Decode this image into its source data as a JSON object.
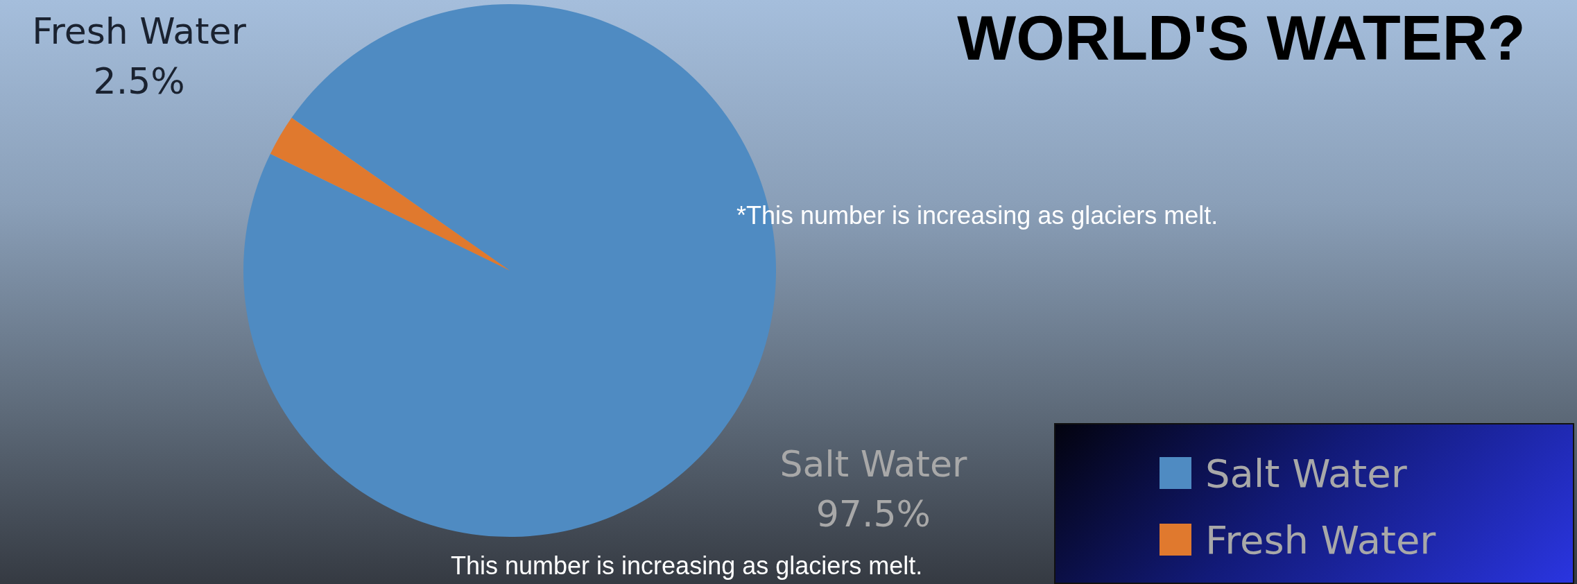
{
  "chart_data": {
    "type": "pie",
    "title": "WORLD'S WATER?",
    "categories": [
      "Salt Water",
      "Fresh Water"
    ],
    "values": [
      97.5,
      2.5
    ],
    "colors": [
      "#4f8bc2",
      "#e0792e"
    ],
    "value_labels": [
      "97.5%",
      "2.5%"
    ],
    "legend": "bottom right",
    "annotations": [
      "*This number is increasing as glaciers melt.",
      "This number is increasing as glaciers melt."
    ]
  }
}
